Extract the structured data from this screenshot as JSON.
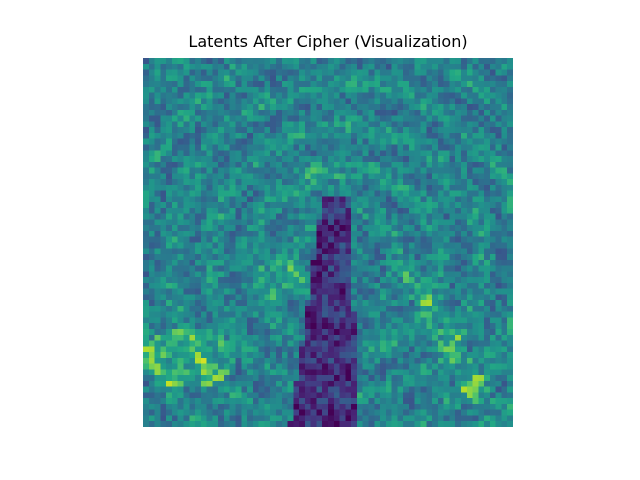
{
  "title": "Latents After Cipher (Visualization)",
  "image": {
    "kind": "heatmap",
    "grid_rows": 64,
    "grid_cols": 64,
    "colormap": "viridis",
    "axes_visible": false,
    "subject": "noisy latent grid over a vertical dark figure shape with brighter green/yellow regions at the lower-left and right"
  },
  "colors": {
    "background": "#ffffff",
    "low": "#440154",
    "mid": "#21918c",
    "high": "#fde725"
  }
}
